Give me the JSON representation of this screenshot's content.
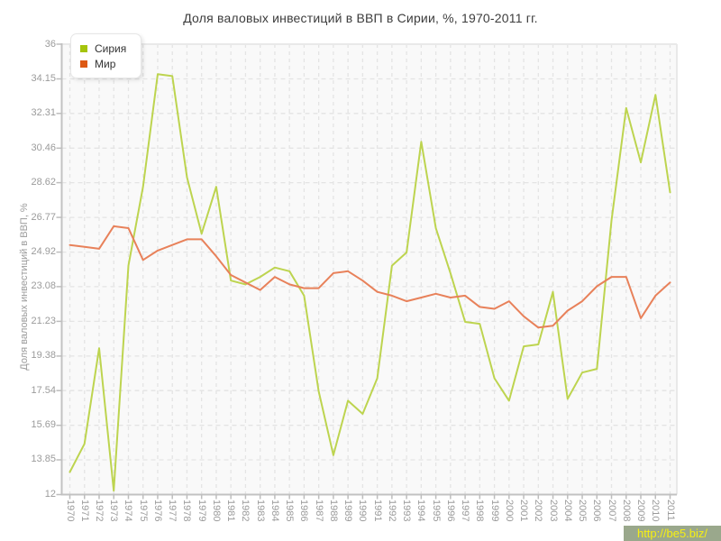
{
  "chart_title": "Доля валовых инвестиций в ВВП в Сирии, %, 1970-2011 гг.",
  "y_axis_title": "Доля валовых инвестиций в ВВП, %",
  "watermark": {
    "text": "http://be5.biz/"
  },
  "legend": {
    "items": [
      {
        "label": "Сирия",
        "marker_color": "#a5c40c"
      },
      {
        "label": "Мир",
        "marker_color": "#dd5913"
      }
    ]
  },
  "chart_data": {
    "type": "line",
    "x": [
      "1970",
      "1971",
      "1972",
      "1973",
      "1974",
      "1975",
      "1976",
      "1977",
      "1978",
      "1979",
      "1980",
      "1981",
      "1982",
      "1983",
      "1984",
      "1985",
      "1986",
      "1987",
      "1988",
      "1989",
      "1990",
      "1991",
      "1992",
      "1993",
      "1994",
      "1995",
      "1996",
      "1997",
      "1998",
      "1999",
      "2000",
      "2001",
      "2002",
      "2003",
      "2004",
      "2005",
      "2006",
      "2007",
      "2008",
      "2009",
      "2010",
      "2011"
    ],
    "series": [
      {
        "name": "Сирия",
        "color": "#bdd44f",
        "values": [
          13.2,
          14.7,
          19.8,
          12.2,
          24.2,
          28.4,
          34.4,
          34.3,
          28.9,
          25.9,
          28.4,
          23.4,
          23.2,
          23.6,
          24.1,
          23.9,
          22.6,
          17.5,
          14.1,
          17.0,
          16.3,
          18.2,
          24.2,
          24.9,
          30.8,
          26.2,
          23.8,
          21.2,
          21.1,
          18.2,
          17.0,
          19.9,
          20.0,
          22.8,
          17.1,
          18.5,
          18.7,
          26.6,
          32.6,
          29.7,
          33.3,
          28.1
        ]
      },
      {
        "name": "Мир",
        "color": "#e8815a",
        "values": [
          25.3,
          25.2,
          25.1,
          26.3,
          26.2,
          24.5,
          25.0,
          25.3,
          25.6,
          25.6,
          24.7,
          23.7,
          23.3,
          22.9,
          23.6,
          23.2,
          23.0,
          23.0,
          23.8,
          23.9,
          23.4,
          22.8,
          22.6,
          22.3,
          22.5,
          22.7,
          22.5,
          22.6,
          22.0,
          21.9,
          22.3,
          21.5,
          20.9,
          21.0,
          21.8,
          22.3,
          23.1,
          23.6,
          23.6,
          21.4,
          22.6,
          23.3
        ]
      }
    ],
    "y_ticks": [
      "36",
      "34.15",
      "32.31",
      "30.46",
      "28.62",
      "26.77",
      "24.92",
      "23.08",
      "21.23",
      "19.38",
      "17.54",
      "15.69",
      "13.85",
      "12"
    ],
    "ylim": [
      12,
      36
    ],
    "grid": "dashed-both",
    "legend_position": "top-left-inside"
  }
}
